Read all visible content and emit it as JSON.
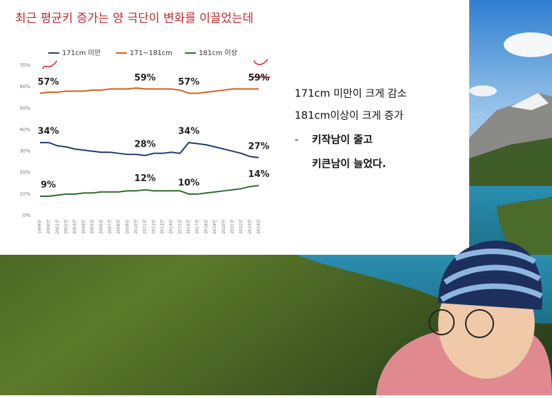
{
  "slide": {
    "title": "최근 평균키 증가는 양 극단이 변화를 이끌었는데",
    "notes": [
      "171cm 미만이 크게 감소",
      "181cm이상이 크게 증가"
    ],
    "bullet": "-",
    "emphasis": [
      "키작남이 줄고",
      "키큰남이 늘었다."
    ]
  },
  "chart_data": {
    "type": "line",
    "legend": "top",
    "grid": false,
    "categories": [
      "1999년",
      "2000년",
      "2001년",
      "2002년",
      "2003년",
      "2004년",
      "2005년",
      "2006년",
      "2007년",
      "2008년",
      "2009년",
      "2010년",
      "2011년",
      "2012년",
      "2013년",
      "2014년",
      "2015년",
      "2016년",
      "2017년",
      "2018년",
      "2019년",
      "2020년",
      "2021년",
      "2022년",
      "2023년",
      "2024년"
    ],
    "ylim": [
      0,
      70
    ],
    "yticks": [
      {
        "value": 0,
        "label": "0%"
      },
      {
        "value": 10,
        "label": "10%"
      },
      {
        "value": 20,
        "label": "20%"
      },
      {
        "value": 30,
        "label": "30%"
      },
      {
        "value": 40,
        "label": "40%"
      },
      {
        "value": 50,
        "label": "50%"
      },
      {
        "value": 60,
        "label": "60%"
      },
      {
        "value": 70,
        "label": "70%"
      }
    ],
    "series": [
      {
        "name": "171cm 미만",
        "color": "#1f3a6e",
        "values": [
          34,
          34,
          32.5,
          32,
          31,
          30.5,
          30,
          29.5,
          29.5,
          29,
          28.5,
          28.5,
          28,
          29,
          29,
          29.5,
          29,
          34,
          33.5,
          33,
          32,
          31,
          30,
          29,
          27.5,
          27
        ],
        "value_labels": [
          "34%",
          null,
          null,
          null,
          null,
          null,
          null,
          null,
          null,
          null,
          null,
          null,
          "28%",
          null,
          null,
          null,
          null,
          "34%",
          null,
          null,
          null,
          null,
          null,
          null,
          null,
          "27%"
        ]
      },
      {
        "name": "171~181cm",
        "color": "#d2601a",
        "values": [
          57,
          57.5,
          57.5,
          58,
          58,
          58,
          58.5,
          58.5,
          59,
          59,
          59,
          59.5,
          59,
          59,
          59,
          59,
          58.5,
          57,
          57,
          57.5,
          58,
          58.5,
          59,
          59,
          59,
          59
        ],
        "value_labels": [
          "57%",
          null,
          null,
          null,
          null,
          null,
          null,
          null,
          null,
          null,
          null,
          null,
          "59%",
          null,
          null,
          null,
          null,
          "57%",
          null,
          null,
          null,
          null,
          null,
          null,
          null,
          "59%"
        ]
      },
      {
        "name": "181cm 이상",
        "color": "#2d6a2d",
        "values": [
          9,
          9,
          9.5,
          10,
          10,
          10.5,
          10.5,
          11,
          11,
          11,
          11.5,
          11.5,
          12,
          11.5,
          11.5,
          11.5,
          11.5,
          10,
          10,
          10.5,
          11,
          11.5,
          12,
          12.5,
          13.5,
          14
        ],
        "value_labels": [
          "9%",
          null,
          null,
          null,
          null,
          null,
          null,
          null,
          null,
          null,
          null,
          null,
          "12%",
          null,
          null,
          null,
          null,
          "10%",
          null,
          null,
          null,
          null,
          null,
          null,
          null,
          "14%"
        ]
      }
    ]
  }
}
